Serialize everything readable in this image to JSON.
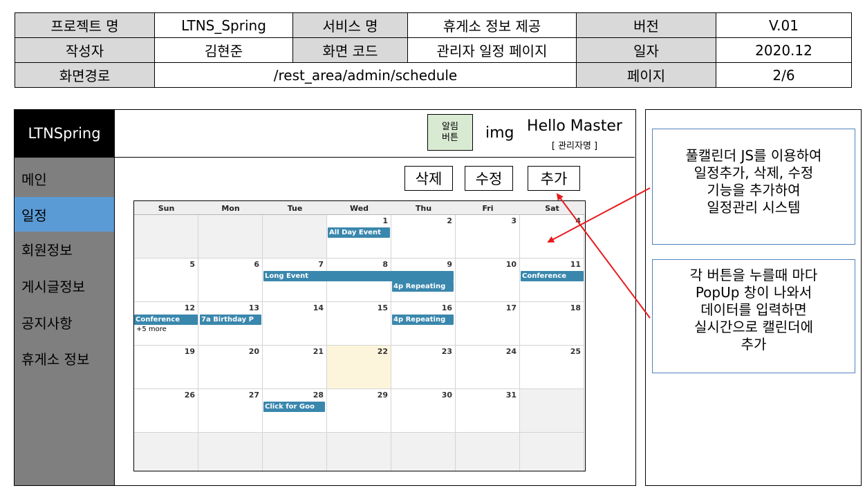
{
  "info_table": {
    "project_label": "프로젝트 명",
    "project_value": "LTNS_Spring",
    "service_label": "서비스 명",
    "service_value": "휴게소 정보 제공",
    "version_label": "버전",
    "version_value": "V.01",
    "author_label": "작성자",
    "author_value": "김현준",
    "screen_code_label": "화면 코드",
    "screen_code_value": "관리자 일정 페이지",
    "date_label": "일자",
    "date_value": "2020.12",
    "path_label": "화면경로",
    "path_value": "/rest_area/admin/schedule",
    "page_label": "페이지",
    "page_value": "2/6"
  },
  "wireframe": {
    "logo": "LTNSpring",
    "sidebar": [
      "메인",
      "일정",
      "회원정보",
      "게시글정보",
      "공지사항",
      "휴게소 정보"
    ],
    "active_menu": "일정",
    "header": {
      "alarm_button": "알림\n버튼",
      "img": "img",
      "hello": "Hello Master",
      "admin_name": "[ 관리자명 ]"
    },
    "buttons": {
      "delete": "삭제",
      "edit": "수정",
      "add": "추가"
    },
    "calendar": {
      "days_of_week": [
        "Sun",
        "Mon",
        "Tue",
        "Wed",
        "Thu",
        "Fri",
        "Sat"
      ],
      "weeks": [
        [
          "",
          "",
          "",
          "1",
          "2",
          "3",
          "4"
        ],
        [
          "5",
          "6",
          "7",
          "8",
          "9",
          "10",
          "11"
        ],
        [
          "12",
          "13",
          "14",
          "15",
          "16",
          "17",
          "18"
        ],
        [
          "19",
          "20",
          "21",
          "22",
          "23",
          "24",
          "25"
        ],
        [
          "26",
          "27",
          "28",
          "29",
          "30",
          "31",
          ""
        ],
        [
          "",
          "",
          "",
          "",
          "",
          "",
          ""
        ]
      ],
      "today": "22",
      "events": {
        "all_day": "All Day Event",
        "long": "Long Event",
        "repeating_1": "4p Repeating",
        "conference_1": "Conference",
        "conference_2": "Conference",
        "birthday": "7a Birthday P",
        "repeating_2": "4p Repeating",
        "click": "Click for Goo"
      },
      "more": "+5 more"
    }
  },
  "notes": {
    "note_1": [
      "풀캘린더 JS를 이용하여",
      "일정추가, 삭제, 수정",
      "기능을 추가하여",
      "일정관리 시스템"
    ],
    "note_2": [
      "각 버튼을 누를때 마다",
      "PopUp 창이 나와서",
      "데이터를 입력하면",
      "실시간으로 캘린더에",
      "추가"
    ]
  },
  "colors": {
    "arrow": "#e8191c",
    "active_menu": "#5b9bd5",
    "sidebar": "#7f7f7f",
    "event": "#3a87ad",
    "note_border": "#4f81bd"
  }
}
